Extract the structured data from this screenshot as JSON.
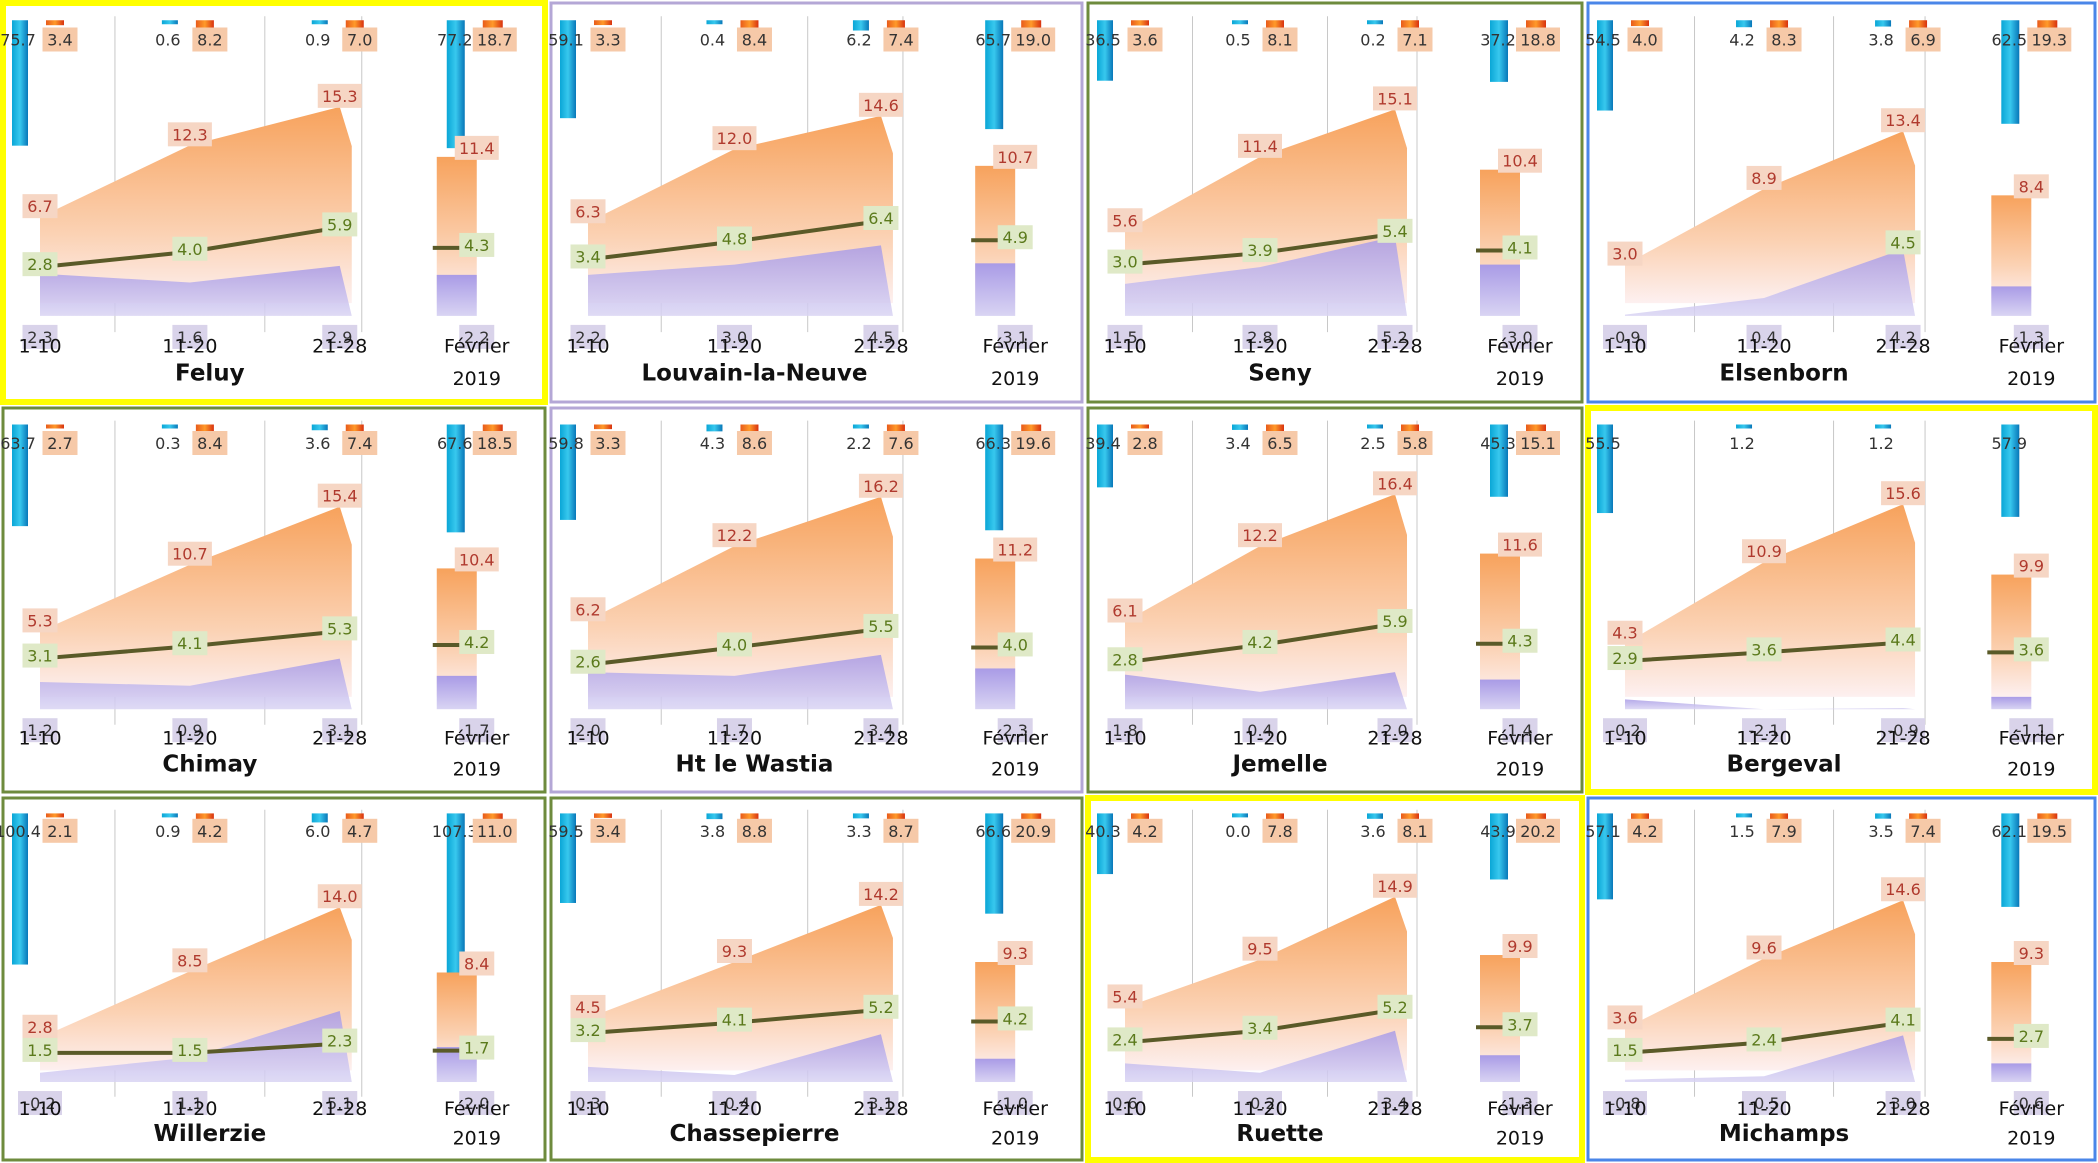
{
  "chart_data": [
    {
      "type": "area",
      "station": "Feluy",
      "period_label": "Février",
      "year": "2019",
      "categories": [
        "1-10",
        "11-20",
        "21-28"
      ],
      "series": [
        {
          "name": "",
          "values": [
            75.7,
            0.6,
            0.9
          ],
          "summary": 77.2
        },
        {
          "name": "",
          "values": [
            3.4,
            8.2,
            7.0
          ],
          "summary": 18.7
        },
        {
          "name": "",
          "values": [
            6.7,
            12.3,
            15.3
          ],
          "summary": 11.4
        },
        {
          "name": "",
          "values": [
            2.8,
            4.0,
            5.9
          ],
          "summary": 4.3
        },
        {
          "name": "",
          "values": [
            2.3,
            1.6,
            2.9
          ],
          "summary": 2.2
        }
      ],
      "border": "#ffff00"
    },
    {
      "type": "area",
      "station": "Louvain-la-Neuve",
      "period_label": "Février",
      "year": "2019",
      "categories": [
        "1-10",
        "11-20",
        "21-28"
      ],
      "series": [
        {
          "name": "",
          "values": [
            59.1,
            0.4,
            6.2
          ],
          "summary": 65.7
        },
        {
          "name": "",
          "values": [
            3.3,
            8.4,
            7.4
          ],
          "summary": 19.0
        },
        {
          "name": "",
          "values": [
            6.3,
            12.0,
            14.6
          ],
          "summary": 10.7
        },
        {
          "name": "",
          "values": [
            3.4,
            4.8,
            6.4
          ],
          "summary": 4.9
        },
        {
          "name": "",
          "values": [
            2.2,
            3.0,
            4.5
          ],
          "summary": 3.1
        }
      ],
      "border": "#b4a7d6"
    },
    {
      "type": "area",
      "station": "Seny",
      "period_label": "Février",
      "year": "2019",
      "categories": [
        "1-10",
        "11-20",
        "21-28"
      ],
      "series": [
        {
          "name": "",
          "values": [
            36.5,
            0.5,
            0.2
          ],
          "summary": 37.2
        },
        {
          "name": "",
          "values": [
            3.6,
            8.1,
            7.1
          ],
          "summary": 18.8
        },
        {
          "name": "",
          "values": [
            5.6,
            11.4,
            15.1
          ],
          "summary": 10.4
        },
        {
          "name": "",
          "values": [
            3.0,
            3.9,
            5.4
          ],
          "summary": 4.1
        },
        {
          "name": "",
          "values": [
            1.5,
            2.8,
            5.2
          ],
          "summary": 3.0
        }
      ],
      "border": "#6e8b3d"
    },
    {
      "type": "area",
      "station": "Elsenborn",
      "period_label": "Février",
      "year": "2019",
      "categories": [
        "1-10",
        "11-20",
        "21-28"
      ],
      "series": [
        {
          "name": "",
          "values": [
            54.5,
            4.2,
            3.8
          ],
          "summary": 62.5
        },
        {
          "name": "",
          "values": [
            4.0,
            8.3,
            6.9
          ],
          "summary": 19.3
        },
        {
          "name": "",
          "values": [
            3.0,
            8.9,
            13.4
          ],
          "summary": 8.4
        },
        {
          "name": "",
          "values": [
            null,
            null,
            4.5
          ],
          "summary": null
        },
        {
          "name": "",
          "values": [
            -0.9,
            0.4,
            4.2
          ],
          "summary": 1.3
        }
      ],
      "border": "#4a86e8"
    },
    {
      "type": "area",
      "station": "Chimay",
      "period_label": "Février",
      "year": "2019",
      "categories": [
        "1-10",
        "11-20",
        "21-28"
      ],
      "series": [
        {
          "name": "",
          "values": [
            63.7,
            0.3,
            3.6
          ],
          "summary": 67.6
        },
        {
          "name": "",
          "values": [
            2.7,
            8.4,
            7.4
          ],
          "summary": 18.5
        },
        {
          "name": "",
          "values": [
            5.3,
            10.7,
            15.4
          ],
          "summary": 10.4
        },
        {
          "name": "",
          "values": [
            3.1,
            4.1,
            5.3
          ],
          "summary": 4.2
        },
        {
          "name": "",
          "values": [
            1.2,
            0.9,
            3.1
          ],
          "summary": 1.7
        }
      ],
      "border": "#6e8b3d"
    },
    {
      "type": "area",
      "station": "Ht le Wastia",
      "period_label": "Février",
      "year": "2019",
      "categories": [
        "1-10",
        "11-20",
        "21-28"
      ],
      "series": [
        {
          "name": "",
          "values": [
            59.8,
            4.3,
            2.2
          ],
          "summary": 66.3
        },
        {
          "name": "",
          "values": [
            3.3,
            8.6,
            7.6
          ],
          "summary": 19.6
        },
        {
          "name": "",
          "values": [
            6.2,
            12.2,
            16.2
          ],
          "summary": 11.2
        },
        {
          "name": "",
          "values": [
            2.6,
            4.0,
            5.5
          ],
          "summary": 4.0
        },
        {
          "name": "",
          "values": [
            2.0,
            1.7,
            3.4
          ],
          "summary": 2.3
        }
      ],
      "border": "#b4a7d6"
    },
    {
      "type": "area",
      "station": "Jemelle",
      "period_label": "Février",
      "year": "2019",
      "categories": [
        "1-10",
        "11-20",
        "21-28"
      ],
      "series": [
        {
          "name": "",
          "values": [
            39.4,
            3.4,
            2.5
          ],
          "summary": 45.3
        },
        {
          "name": "",
          "values": [
            2.8,
            6.5,
            5.8
          ],
          "summary": 15.1
        },
        {
          "name": "",
          "values": [
            6.1,
            12.2,
            16.4
          ],
          "summary": 11.6
        },
        {
          "name": "",
          "values": [
            2.8,
            4.2,
            5.9
          ],
          "summary": 4.3
        },
        {
          "name": "",
          "values": [
            1.8,
            0.4,
            2.0
          ],
          "summary": 1.4
        }
      ],
      "border": "#6e8b3d"
    },
    {
      "type": "area",
      "station": "Bergeval",
      "period_label": "Février",
      "year": "2019",
      "categories": [
        "1-10",
        "11-20",
        "21-28"
      ],
      "series": [
        {
          "name": "",
          "values": [
            55.5,
            1.2,
            1.2
          ],
          "summary": 57.9
        },
        {
          "name": "",
          "values": [
            null,
            null,
            null
          ],
          "summary": null
        },
        {
          "name": "",
          "values": [
            4.3,
            10.9,
            15.6
          ],
          "summary": 9.9
        },
        {
          "name": "",
          "values": [
            2.9,
            3.6,
            4.4
          ],
          "summary": 3.6
        },
        {
          "name": "",
          "values": [
            -0.2,
            -2.1,
            -0.9
          ],
          "summary": -1.1
        }
      ],
      "border": "#ffff00"
    },
    {
      "type": "area",
      "station": "Willerzie",
      "period_label": "Février",
      "year": "2019",
      "categories": [
        "1-10",
        "11-20",
        "21-28"
      ],
      "series": [
        {
          "name": "",
          "values": [
            100.4,
            0.9,
            6.0
          ],
          "summary": 107.3
        },
        {
          "name": "",
          "values": [
            2.1,
            4.2,
            4.7
          ],
          "summary": 11.0
        },
        {
          "name": "",
          "values": [
            2.8,
            8.5,
            14.0
          ],
          "summary": 8.4
        },
        {
          "name": "",
          "values": [
            1.5,
            1.5,
            2.3
          ],
          "summary": 1.7
        },
        {
          "name": "",
          "values": [
            -0.2,
            1.1,
            5.1
          ],
          "summary": 2.0
        }
      ],
      "border": "#6e8b3d"
    },
    {
      "type": "area",
      "station": "Chassepierre",
      "period_label": "Février",
      "year": "2019",
      "categories": [
        "1-10",
        "11-20",
        "21-28"
      ],
      "series": [
        {
          "name": "",
          "values": [
            59.5,
            3.8,
            3.3
          ],
          "summary": 66.6
        },
        {
          "name": "",
          "values": [
            3.4,
            8.8,
            8.7
          ],
          "summary": 20.9
        },
        {
          "name": "",
          "values": [
            4.5,
            9.3,
            14.2
          ],
          "summary": 9.3
        },
        {
          "name": "",
          "values": [
            3.2,
            4.1,
            5.2
          ],
          "summary": 4.2
        },
        {
          "name": "",
          "values": [
            0.3,
            -0.4,
            3.1
          ],
          "summary": 1.0
        }
      ],
      "border": "#6e8b3d"
    },
    {
      "type": "area",
      "station": "Ruette",
      "period_label": "Février",
      "year": "2019",
      "categories": [
        "1-10",
        "11-20",
        "21-28"
      ],
      "series": [
        {
          "name": "",
          "values": [
            40.3,
            0.0,
            3.6
          ],
          "summary": 43.9
        },
        {
          "name": "",
          "values": [
            4.2,
            7.8,
            8.1
          ],
          "summary": 20.2
        },
        {
          "name": "",
          "values": [
            5.4,
            9.5,
            14.9
          ],
          "summary": 9.9
        },
        {
          "name": "",
          "values": [
            2.4,
            3.4,
            5.2
          ],
          "summary": 3.7
        },
        {
          "name": "",
          "values": [
            0.6,
            -0.2,
            3.4
          ],
          "summary": 1.3
        }
      ],
      "border": "#ffff00"
    },
    {
      "type": "area",
      "station": "Michamps",
      "period_label": "Février",
      "year": "2019",
      "categories": [
        "1-10",
        "11-20",
        "21-28"
      ],
      "series": [
        {
          "name": "",
          "values": [
            57.1,
            1.5,
            3.5
          ],
          "summary": 62.1
        },
        {
          "name": "",
          "values": [
            4.2,
            7.9,
            7.4
          ],
          "summary": 19.5
        },
        {
          "name": "",
          "values": [
            3.6,
            9.6,
            14.6
          ],
          "summary": 9.3
        },
        {
          "name": "",
          "values": [
            1.5,
            2.4,
            4.1
          ],
          "summary": 2.7
        },
        {
          "name": "",
          "values": [
            -0.8,
            -0.5,
            3.0
          ],
          "summary": 0.6
        }
      ],
      "border": "#4a86e8"
    }
  ]
}
